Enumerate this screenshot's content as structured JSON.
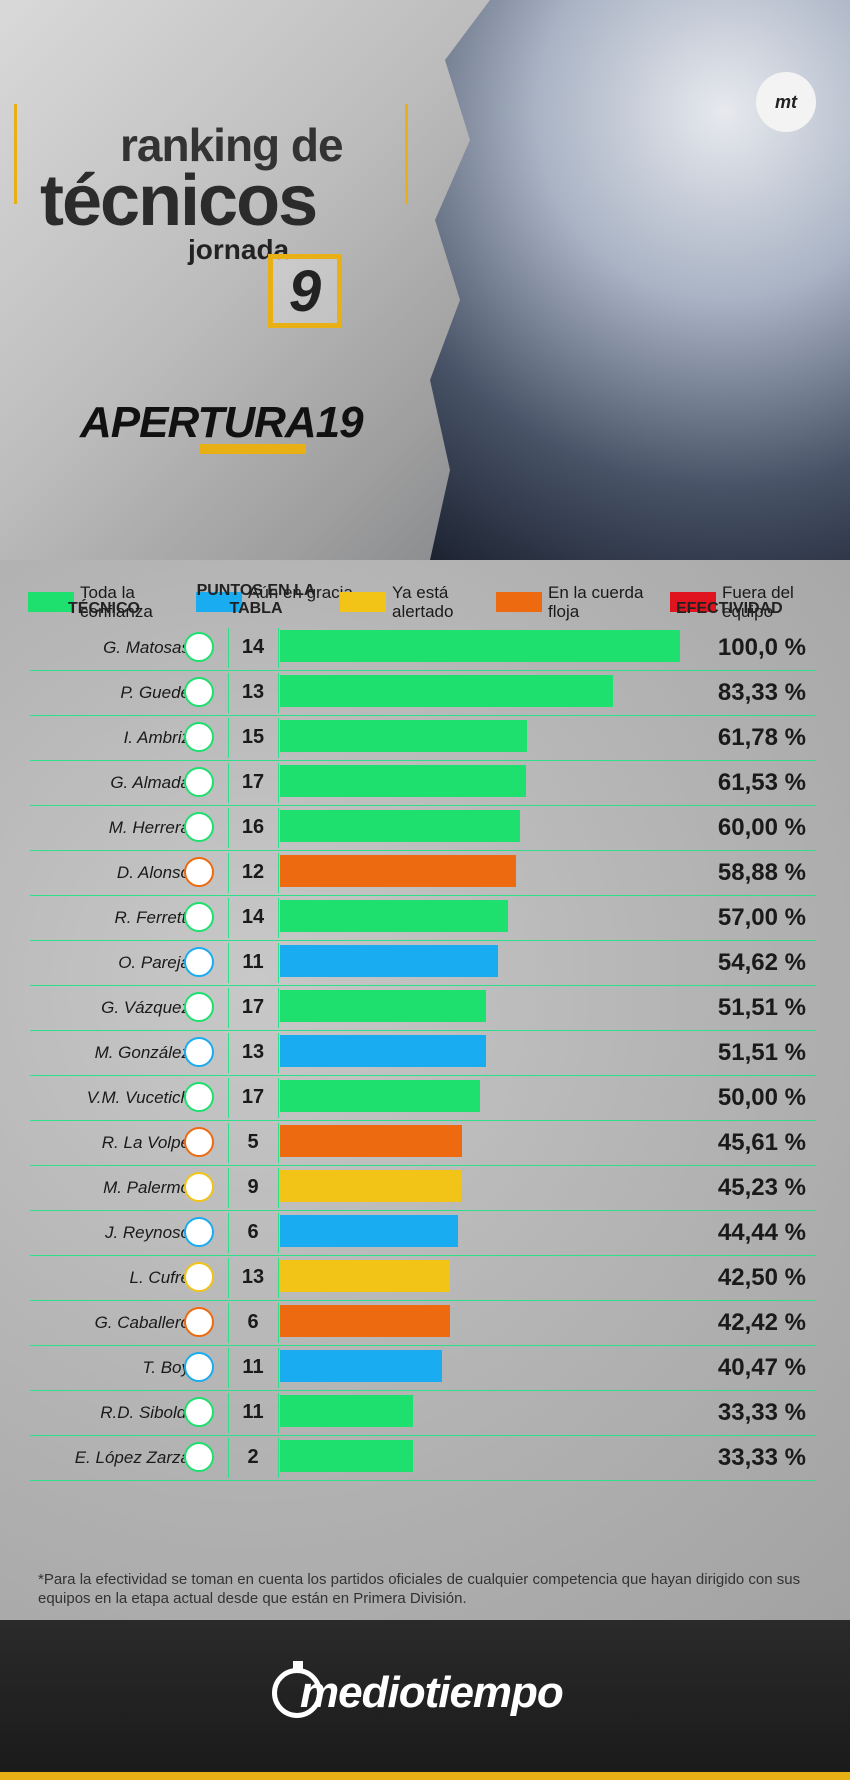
{
  "header": {
    "title_line1": "ranking de",
    "title_line2": "técnicos",
    "title_line3": "jornada",
    "jornada_number": "9",
    "season": "APERTURA19",
    "badge": "mt"
  },
  "legend": [
    {
      "label": "Toda la confianza",
      "color": "#1ee06e"
    },
    {
      "label": "Aún en gracia",
      "color": "#1aacf0"
    },
    {
      "label": "Ya está alertado",
      "color": "#f2c418"
    },
    {
      "label": "En la cuerda floja",
      "color": "#ee6a10"
    },
    {
      "label": "Fuera del equipo",
      "color": "#e0141e"
    }
  ],
  "columns": {
    "tecnico": "TÉCNICO",
    "puntos": "PUNTOS EN LA TABLA",
    "efectividad": "EFECTIVIDAD"
  },
  "chart_data": {
    "type": "bar",
    "orientation": "horizontal",
    "xlim": [
      0,
      100
    ],
    "categories": [
      "G. Matosas",
      "P. Guede",
      "I. Ambriz",
      "G. Almada",
      "M. Herrera",
      "D. Alonso",
      "R. Ferretti",
      "O. Pareja",
      "G. Vázquez",
      "M. González",
      "V.M. Vucetich",
      "R. La Volpe",
      "M. Palermo",
      "J. Reynoso",
      "L. Cufré",
      "G. Caballero",
      "T. Boy",
      "R.D. Siboldi",
      "E. López Zarza"
    ],
    "points": [
      14,
      13,
      15,
      17,
      16,
      12,
      14,
      11,
      17,
      13,
      17,
      5,
      9,
      6,
      13,
      6,
      11,
      11,
      2
    ],
    "values": [
      100.0,
      83.33,
      61.78,
      61.53,
      60.0,
      58.88,
      57.0,
      54.62,
      51.51,
      51.51,
      50.0,
      45.61,
      45.23,
      44.44,
      42.5,
      42.42,
      40.47,
      33.33,
      33.33
    ],
    "value_labels": [
      "100,0 %",
      "83,33 %",
      "61,78 %",
      "61,53 %",
      "60,00 %",
      "58,88 %",
      "57,00 %",
      "54,62 %",
      "51,51 %",
      "51,51 %",
      "50,00 %",
      "45,61 %",
      "45,23 %",
      "44,44 %",
      "42,50 %",
      "42,42 %",
      "40,47 %",
      "33,33 %",
      "33,33 %"
    ],
    "status": [
      "Toda la confianza",
      "Toda la confianza",
      "Toda la confianza",
      "Toda la confianza",
      "Toda la confianza",
      "En la cuerda floja",
      "Toda la confianza",
      "Aún en gracia",
      "Toda la confianza",
      "Aún en gracia",
      "Toda la confianza",
      "En la cuerda floja",
      "Ya está alertado",
      "Aún en gracia",
      "Ya está alertado",
      "En la cuerda floja",
      "Aún en gracia",
      "Toda la confianza",
      "Toda la confianza"
    ],
    "colors": [
      "#1ee06e",
      "#1ee06e",
      "#1ee06e",
      "#1ee06e",
      "#1ee06e",
      "#ee6a10",
      "#1ee06e",
      "#1aacf0",
      "#1ee06e",
      "#1aacf0",
      "#1ee06e",
      "#ee6a10",
      "#f2c418",
      "#1aacf0",
      "#f2c418",
      "#ee6a10",
      "#1aacf0",
      "#1ee06e",
      "#1ee06e"
    ]
  },
  "footnote": "*Para la efectividad se toman en cuenta los partidos oficiales de cualquier competencia que hayan dirigido con sus equipos en la etapa actual desde que están en Primera División.",
  "footer": {
    "brand": "mediotiempo"
  }
}
